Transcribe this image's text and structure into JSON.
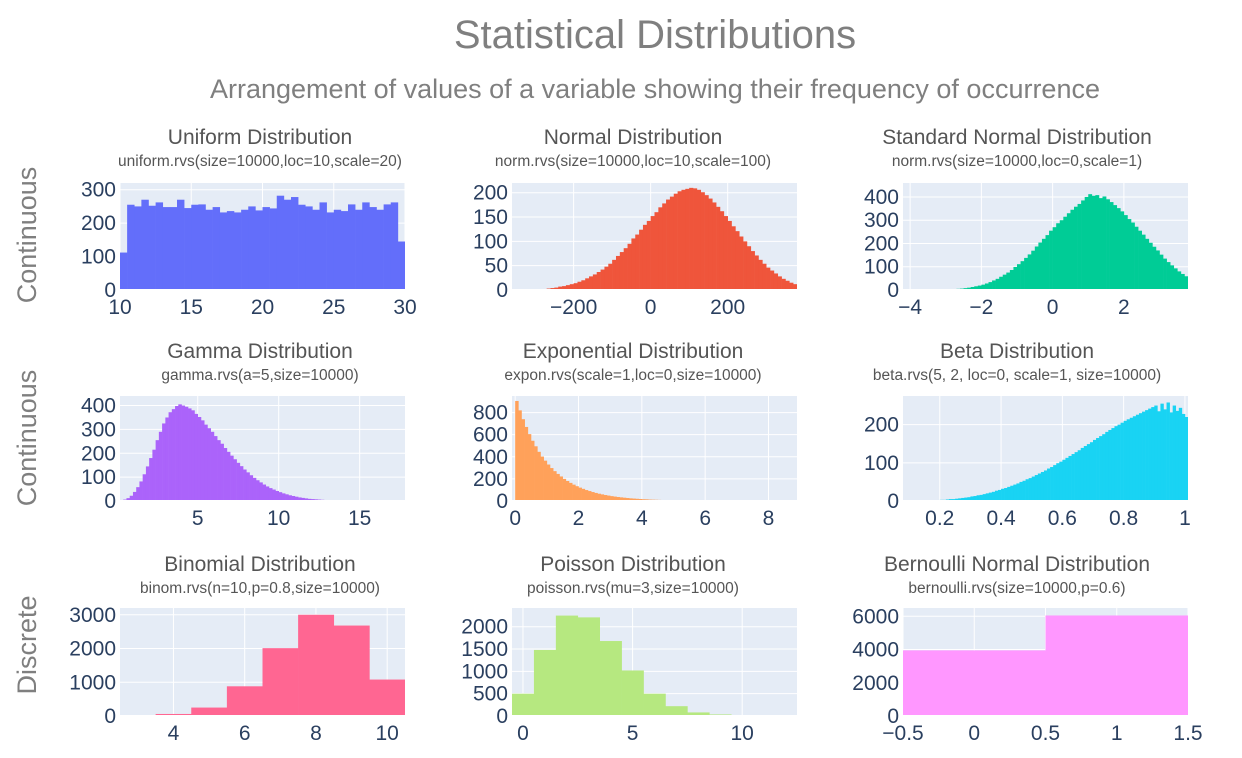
{
  "title": "Statistical Distributions",
  "subtitle": "Arrangement of values of a variable showing their frequency of occurrence",
  "row_labels": [
    "Continuous",
    "Continuous",
    "Discrete"
  ],
  "colors": {
    "plot_bg": "#e5ecf6",
    "grid": "#ffffff",
    "tick_text": "#2a3f5f",
    "title_text": "#7f7f7f"
  },
  "chart_data": [
    {
      "type": "bar",
      "title": "Uniform Distribution",
      "subtitle": "uniform.rvs(size=10000,loc=10,scale=20)",
      "color": "#636efa",
      "xlim": [
        10,
        30
      ],
      "ylim": [
        0,
        320
      ],
      "xticks": [
        10,
        15,
        20,
        25,
        30
      ],
      "yticks": [
        0,
        100,
        200,
        300
      ],
      "bin_start": 10,
      "bin_width": 0.5,
      "values": [
        112,
        255,
        250,
        270,
        252,
        262,
        248,
        248,
        270,
        245,
        255,
        256,
        240,
        248,
        232,
        236,
        232,
        240,
        250,
        238,
        248,
        244,
        282,
        270,
        278,
        255,
        250,
        240,
        262,
        232,
        240,
        236,
        256,
        240,
        262,
        248,
        240,
        256,
        262,
        145
      ]
    },
    {
      "type": "bar",
      "title": "Normal Distribution",
      "subtitle": "norm.rvs(size=10000,loc=10,scale=100)",
      "color": "#ef553b",
      "xlim": [
        -360,
        380
      ],
      "ylim": [
        0,
        220
      ],
      "xticks": [
        -200,
        0,
        200
      ],
      "yticks": [
        0,
        50,
        100,
        150,
        200
      ],
      "bin_start": -330,
      "bin_width": 10,
      "values": [
        1,
        0,
        1,
        1,
        2,
        2,
        3,
        4,
        5,
        7,
        8,
        10,
        12,
        14,
        17,
        20,
        24,
        28,
        32,
        37,
        42,
        48,
        54,
        62,
        70,
        78,
        86,
        95,
        106,
        114,
        124,
        134,
        142,
        152,
        160,
        170,
        178,
        186,
        192,
        198,
        203,
        206,
        208,
        210,
        209,
        206,
        201,
        195,
        188,
        180,
        171,
        162,
        152,
        142,
        131,
        121,
        110,
        100,
        90,
        80,
        71,
        62,
        54,
        46,
        40,
        34,
        28,
        23,
        19,
        15,
        12,
        9,
        7,
        5,
        4,
        3,
        2,
        1,
        1,
        1
      ]
    },
    {
      "type": "bar",
      "title": "Standard Normal Distribution",
      "subtitle": "norm.rvs(size=10000,loc=0,scale=1)",
      "color": "#00cc96",
      "xlim": [
        -4.2,
        3.8
      ],
      "ylim": [
        0,
        460
      ],
      "xticks": [
        -4,
        -2,
        0,
        2
      ],
      "yticks": [
        0,
        100,
        200,
        300,
        400
      ],
      "bin_start": -4,
      "bin_width": 0.1,
      "values": [
        1,
        0,
        0,
        1,
        1,
        1,
        1,
        2,
        2,
        2,
        3,
        3,
        4,
        5,
        6,
        8,
        10,
        13,
        16,
        19,
        23,
        28,
        34,
        41,
        48,
        57,
        66,
        75,
        86,
        99,
        111,
        124,
        138,
        153,
        169,
        187,
        204,
        220,
        236,
        255,
        270,
        287,
        300,
        315,
        330,
        345,
        358,
        370,
        385,
        400,
        412,
        405,
        408,
        395,
        402,
        390,
        378,
        365,
        352,
        338,
        322,
        305,
        290,
        272,
        255,
        238,
        220,
        203,
        186,
        170,
        152,
        135,
        120,
        106,
        93,
        80,
        69,
        59,
        50,
        42,
        35,
        28,
        22,
        18,
        14,
        11,
        8,
        6,
        5,
        4,
        3,
        2,
        2,
        1,
        1
      ]
    },
    {
      "type": "bar",
      "title": "Gamma Distribution",
      "subtitle": "gamma.rvs(a=5,size=10000)",
      "color": "#ab63fa",
      "xlim": [
        0.2,
        17.8
      ],
      "ylim": [
        0,
        440
      ],
      "xticks": [
        5,
        10,
        15
      ],
      "yticks": [
        0,
        100,
        200,
        300,
        400
      ],
      "bin_start": 0.2,
      "bin_width": 0.2,
      "values": [
        2,
        6,
        12,
        22,
        38,
        58,
        82,
        112,
        145,
        180,
        215,
        255,
        290,
        325,
        350,
        372,
        385,
        398,
        405,
        400,
        395,
        388,
        380,
        365,
        352,
        338,
        320,
        305,
        290,
        272,
        255,
        240,
        222,
        206,
        190,
        175,
        160,
        146,
        132,
        120,
        108,
        97,
        87,
        78,
        69,
        61,
        54,
        48,
        42,
        37,
        32,
        28,
        24,
        21,
        18,
        15,
        13,
        11,
        9,
        8,
        7,
        6,
        5,
        4,
        3,
        3,
        2,
        2,
        2,
        1,
        1,
        1,
        1,
        1,
        0,
        1,
        0,
        0,
        1,
        0,
        0,
        0,
        0,
        0,
        0,
        0,
        1,
        0
      ]
    },
    {
      "type": "bar",
      "title": "Exponential Distribution",
      "subtitle": "expon.rvs(scale=1,loc=0,size=10000)",
      "color": "#ffa15a",
      "xlim": [
        -0.1,
        8.9
      ],
      "ylim": [
        0,
        950
      ],
      "xticks": [
        0,
        2,
        4,
        6,
        8
      ],
      "yticks": [
        0,
        200,
        400,
        600,
        800
      ],
      "bin_start": 0,
      "bin_width": 0.1,
      "values": [
        905,
        820,
        740,
        670,
        605,
        545,
        495,
        445,
        402,
        365,
        330,
        298,
        270,
        245,
        222,
        200,
        181,
        164,
        148,
        134,
        121,
        110,
        99,
        90,
        81,
        73,
        66,
        60,
        54,
        49,
        44,
        40,
        36,
        33,
        30,
        27,
        24,
        22,
        20,
        18,
        16,
        15,
        13,
        12,
        11,
        10,
        9,
        8,
        7,
        6,
        6,
        5,
        5,
        4,
        4,
        3,
        3,
        3,
        2,
        2,
        2,
        2,
        1,
        1,
        1,
        1,
        1,
        1,
        1,
        1,
        0,
        1,
        0,
        0,
        1,
        0,
        0,
        0,
        1,
        0,
        0,
        0,
        0,
        0,
        1,
        0,
        0,
        0
      ]
    },
    {
      "type": "bar",
      "title": "Beta Distribution",
      "subtitle": "beta.rvs(5, 2, loc=0, scale=1, size=10000)",
      "color": "#19d3f3",
      "xlim": [
        0.08,
        1.01
      ],
      "ylim": [
        0,
        275
      ],
      "xticks": [
        0.2,
        0.4,
        0.6,
        0.8,
        1
      ],
      "yticks": [
        0,
        100,
        200
      ],
      "bin_start": 0.1,
      "bin_width": 0.01,
      "values": [
        1,
        0,
        1,
        0,
        1,
        1,
        1,
        2,
        2,
        2,
        3,
        3,
        4,
        5,
        5,
        6,
        7,
        8,
        9,
        10,
        12,
        13,
        15,
        16,
        18,
        20,
        22,
        24,
        27,
        29,
        32,
        34,
        37,
        40,
        43,
        46,
        50,
        53,
        57,
        60,
        64,
        68,
        72,
        76,
        80,
        85,
        89,
        94,
        99,
        103,
        108,
        113,
        118,
        123,
        128,
        133,
        139,
        144,
        149,
        154,
        160,
        165,
        170,
        175,
        181,
        186,
        191,
        196,
        200,
        205,
        210,
        214,
        218,
        222,
        226,
        230,
        234,
        238,
        242,
        246,
        250,
        235,
        255,
        240,
        258,
        232,
        250,
        236,
        244,
        228,
        220,
        205,
        195,
        175,
        155,
        130,
        105,
        75,
        45,
        15
      ]
    },
    {
      "type": "bar",
      "title": "Binomial Distribution",
      "subtitle": "binom.rvs(n=10,p=0.8,size=10000)",
      "color": "#ff6692",
      "xlim": [
        2.5,
        10.5
      ],
      "ylim": [
        0,
        3200
      ],
      "xticks": [
        4,
        6,
        8,
        10
      ],
      "yticks": [
        0,
        1000,
        2000,
        3000
      ],
      "bin_start": 3.5,
      "bin_width": 1,
      "values": [
        60,
        250,
        880,
        2010,
        3000,
        2680,
        1080
      ]
    },
    {
      "type": "bar",
      "title": "Poisson Distribution",
      "subtitle": "poisson.rvs(mu=3,size=10000)",
      "color": "#b6e880",
      "xlim": [
        -0.5,
        12.5
      ],
      "ylim": [
        0,
        2420
      ],
      "xticks": [
        0,
        5,
        10
      ],
      "yticks": [
        0,
        500,
        1000,
        1500,
        2000
      ],
      "bin_start": -0.5,
      "bin_width": 1,
      "values": [
        500,
        1480,
        2250,
        2210,
        1680,
        1020,
        500,
        220,
        80,
        35,
        10,
        3,
        1
      ]
    },
    {
      "type": "bar",
      "title": "Bernoulli Normal Distribution",
      "subtitle": "bernoulli.rvs(size=10000,p=0.6)",
      "color": "#ff97ff",
      "xlim": [
        -0.5,
        1.5
      ],
      "ylim": [
        0,
        6500
      ],
      "xticks": [
        -0.5,
        0,
        0.5,
        1,
        1.5
      ],
      "yticks": [
        0,
        2000,
        4000,
        6000
      ],
      "bin_start": -0.5,
      "bin_width": 1,
      "values": [
        3950,
        6050
      ]
    }
  ]
}
